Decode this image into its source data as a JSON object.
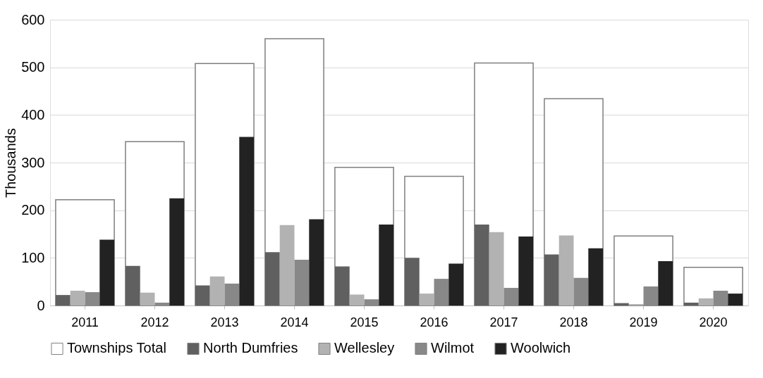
{
  "chart_data": {
    "type": "bar",
    "ylabel": "Thousands",
    "categories": [
      "2011",
      "2012",
      "2013",
      "2014",
      "2015",
      "2016",
      "2017",
      "2018",
      "2019",
      "2020"
    ],
    "series": [
      {
        "name": "Townships Total",
        "color": "#ffffff",
        "values": [
          222,
          344,
          508,
          560,
          290,
          271,
          509,
          434,
          146,
          80
        ]
      },
      {
        "name": "North Dumfries",
        "color": "#606060",
        "values": [
          22,
          83,
          42,
          112,
          82,
          100,
          170,
          107,
          5,
          6
        ]
      },
      {
        "name": "Wellesley",
        "color": "#b2b2b2",
        "values": [
          31,
          27,
          61,
          169,
          23,
          25,
          154,
          147,
          3,
          15
        ]
      },
      {
        "name": "Wilmot",
        "color": "#888888",
        "values": [
          28,
          6,
          46,
          96,
          13,
          56,
          37,
          58,
          40,
          31
        ]
      },
      {
        "name": "Woolwich",
        "color": "#222222",
        "values": [
          138,
          225,
          354,
          181,
          170,
          88,
          145,
          120,
          93,
          25
        ]
      }
    ],
    "ylim": [
      0,
      600
    ],
    "yticks": [
      0,
      100,
      200,
      300,
      400,
      500,
      600
    ],
    "grid": "y",
    "legend": "bottom"
  }
}
